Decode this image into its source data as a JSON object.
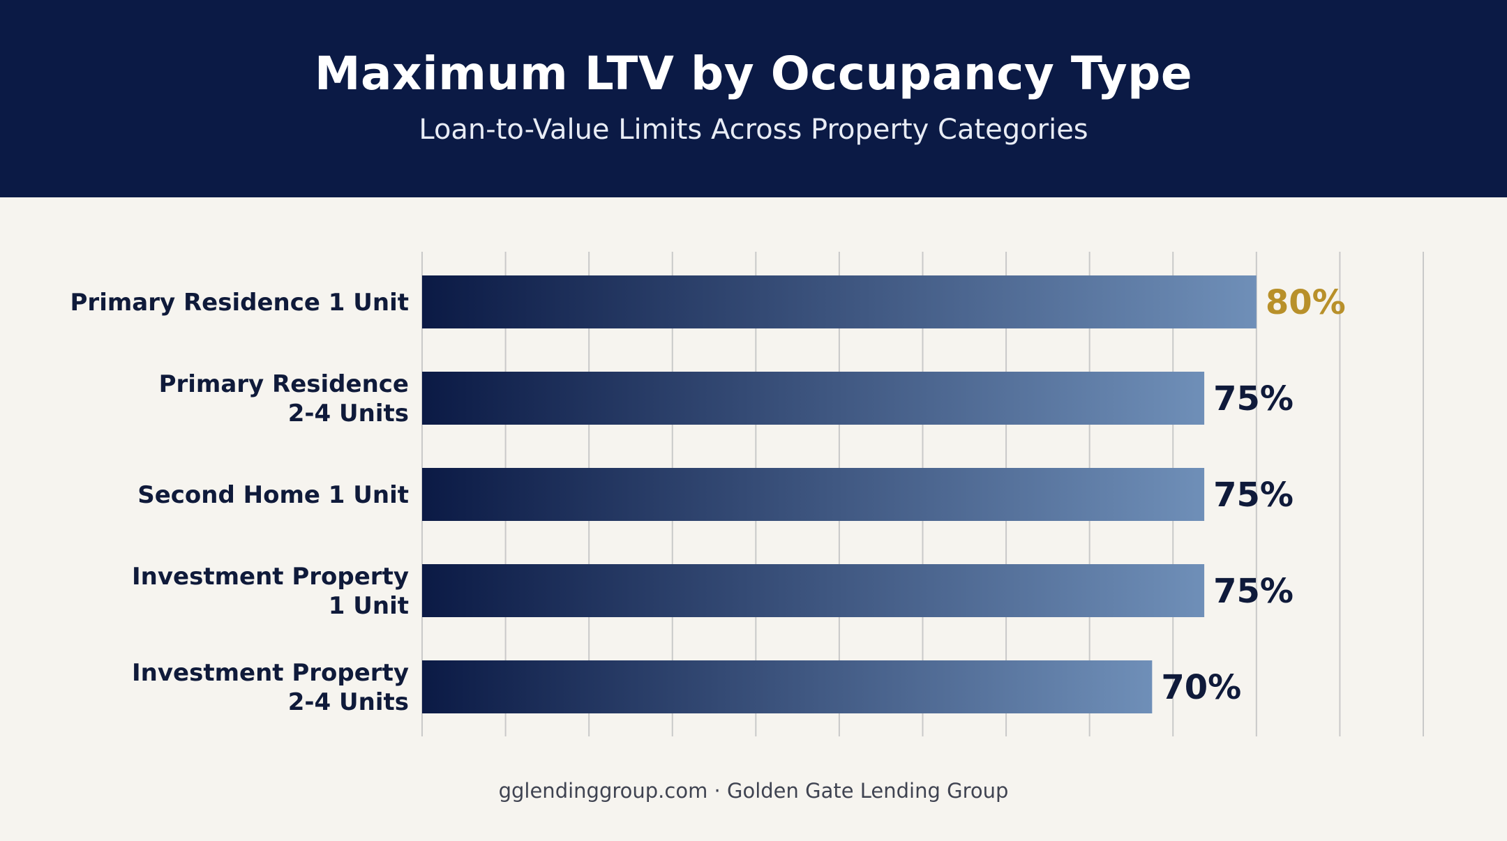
{
  "header": {
    "title": "Maximum LTV by Occupancy Type",
    "subtitle": "Loan-to-Value Limits Across Property Categories"
  },
  "chart_data": {
    "type": "bar",
    "orientation": "horizontal",
    "title": "Maximum LTV by Occupancy Type",
    "subtitle": "Loan-to-Value Limits Across Property Categories",
    "categories": [
      [
        "Primary Residence 1 Unit"
      ],
      [
        "Primary Residence",
        "2-4 Units"
      ],
      [
        "Second Home 1 Unit"
      ],
      [
        "Investment Property",
        "1 Unit"
      ],
      [
        "Investment Property",
        "2-4 Units"
      ]
    ],
    "values": [
      80,
      75,
      75,
      75,
      70
    ],
    "value_labels": [
      "80%",
      "75%",
      "75%",
      "75%",
      "70%"
    ],
    "highlight_index": 0,
    "xlim": [
      0,
      96
    ],
    "grid_step": 8,
    "grid": true,
    "colors": {
      "bar_start": "#0b1a45",
      "bar_end": "#6f8fb8",
      "grid": "#c9c9c9",
      "label": "#0f1a3a",
      "value": "#0f1a3a",
      "highlight_value": "#b8902a"
    }
  },
  "footer": {
    "text": "gglendinggroup.com · Golden Gate Lending Group"
  }
}
